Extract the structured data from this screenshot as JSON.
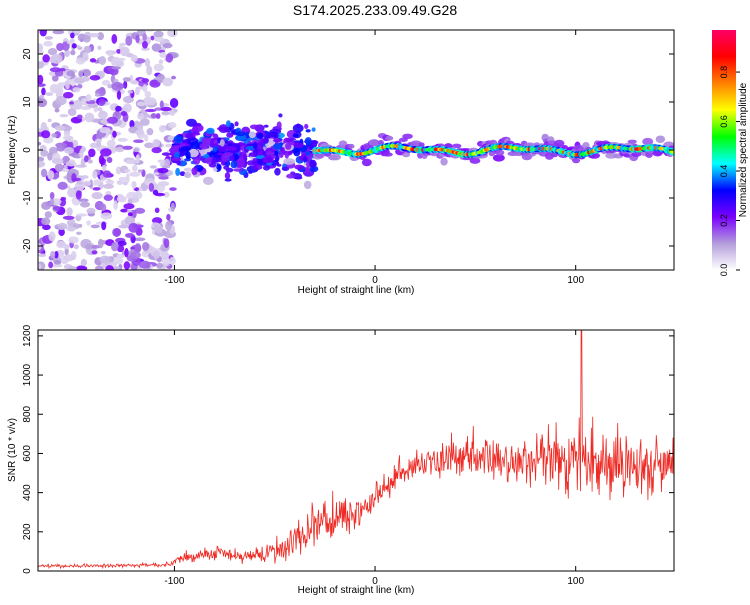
{
  "title": "S174.2025.233.09.49.G28",
  "chart_data": [
    {
      "type": "heatmap",
      "name": "spectrogram",
      "xlabel": "Height of straight line (km)",
      "ylabel": "Frequency (Hz)",
      "xlim": [
        -168,
        149
      ],
      "ylim": [
        -25,
        25
      ],
      "xticks": [
        -100,
        0,
        100
      ],
      "yticks": [
        -20,
        -10,
        0,
        10,
        20
      ],
      "colorbar": {
        "label": "Normalized spectral amplitude",
        "range": [
          0,
          0.97
        ],
        "ticks": [
          0.0,
          0.2,
          0.4,
          0.6,
          0.8
        ],
        "colors": [
          "#ffffff",
          "#b39ddb",
          "#7a00ff",
          "#0000ff",
          "#00ffff",
          "#00ff00",
          "#ffff00",
          "#ff8000",
          "#ff0000",
          "#ff0066"
        ]
      },
      "regions": [
        {
          "x": [
            -168,
            -100
          ],
          "freq_center": 0,
          "freq_spread": 25,
          "amplitude": [
            0.05,
            0.25
          ],
          "pattern": "noise"
        },
        {
          "x": [
            -100,
            -30
          ],
          "freq_center": 0,
          "freq_spread": 5,
          "amplitude": [
            0.2,
            0.4
          ],
          "pattern": "scattered"
        },
        {
          "x": [
            -30,
            149
          ],
          "freq_center": 0,
          "freq_spread": 1.5,
          "amplitude": [
            0.4,
            0.95
          ],
          "pattern": "narrow-line"
        }
      ]
    },
    {
      "type": "line",
      "name": "snr",
      "xlabel": "Height of straight line (km)",
      "ylabel": "SNR (10 * v/v)",
      "xlim": [
        -168,
        149
      ],
      "ylim": [
        0,
        1230
      ],
      "xticks": [
        -100,
        0,
        100
      ],
      "yticks": [
        0,
        200,
        400,
        600,
        800,
        1000,
        1200
      ],
      "color": "#ee2a24",
      "envelope": [
        {
          "x": -168,
          "base": 25,
          "amp": 15
        },
        {
          "x": -105,
          "base": 30,
          "amp": 20
        },
        {
          "x": -95,
          "base": 70,
          "amp": 60
        },
        {
          "x": -80,
          "base": 90,
          "amp": 80
        },
        {
          "x": -60,
          "base": 70,
          "amp": 60
        },
        {
          "x": -45,
          "base": 130,
          "amp": 150
        },
        {
          "x": -25,
          "base": 260,
          "amp": 250
        },
        {
          "x": -10,
          "base": 280,
          "amp": 150
        },
        {
          "x": 5,
          "base": 420,
          "amp": 150
        },
        {
          "x": 20,
          "base": 540,
          "amp": 150
        },
        {
          "x": 40,
          "base": 580,
          "amp": 180
        },
        {
          "x": 70,
          "base": 560,
          "amp": 220
        },
        {
          "x": 85,
          "base": 560,
          "amp": 300
        },
        {
          "x": 100,
          "base": 560,
          "amp": 350
        },
        {
          "x": 120,
          "base": 550,
          "amp": 330
        },
        {
          "x": 149,
          "base": 530,
          "amp": 300
        }
      ],
      "peak": {
        "x": 103,
        "y": 1230
      }
    }
  ]
}
